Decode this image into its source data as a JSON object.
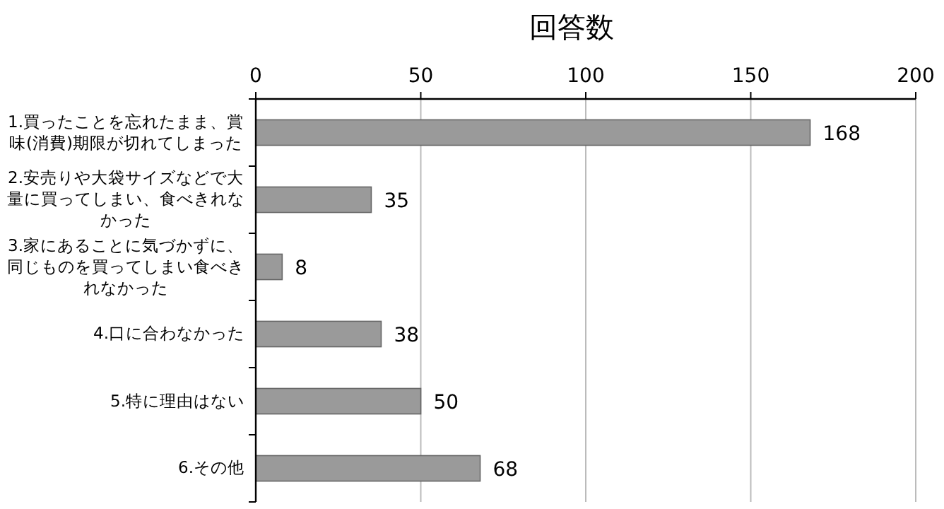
{
  "chart_data": {
    "type": "bar",
    "orientation": "horizontal",
    "title": "回答数",
    "categories": [
      "1.買ったことを忘れたまま、賞味(消費)期限が切れてしまった",
      "2.安売りや大袋サイズなどで大量に買ってしまい、食べきれなかった",
      "3.家にあることに気づかずに、同じものを買ってしまい食べきれなかった",
      "4.口に合わなかった",
      "5.特に理由はない",
      "6.その他"
    ],
    "values": [
      168,
      35,
      8,
      38,
      50,
      68
    ],
    "color": "#9a9a9a",
    "xlim": [
      0,
      200
    ],
    "xticks": [
      0,
      50,
      100,
      150,
      200
    ],
    "grid": "x",
    "data_labels": true
  }
}
